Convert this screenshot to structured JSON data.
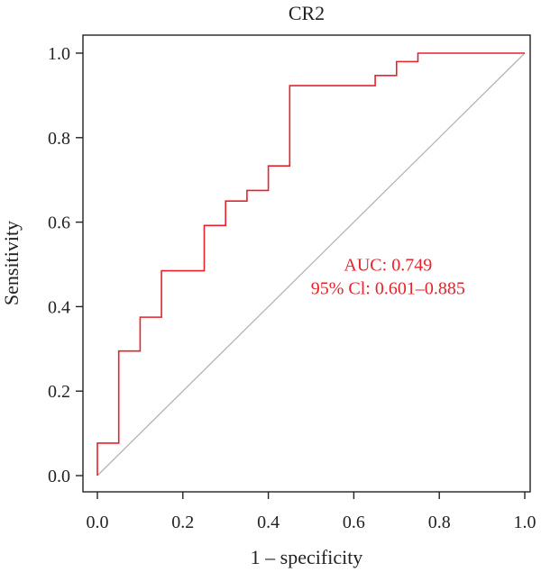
{
  "chart_data": {
    "type": "line",
    "title": "CR2",
    "xlabel": "1 – specificity",
    "ylabel": "Sensitivity",
    "xlim": [
      0,
      1
    ],
    "ylim": [
      0,
      1
    ],
    "x_ticks": [
      "0.0",
      "0.2",
      "0.4",
      "0.6",
      "0.8",
      "1.0"
    ],
    "y_ticks": [
      "0.0",
      "0.2",
      "0.4",
      "0.6",
      "0.8",
      "1.0"
    ],
    "grid": false,
    "legend": "none",
    "series": [
      {
        "color": "#e8212b",
        "points": [
          [
            0.0,
            0.0
          ],
          [
            0.0,
            0.077
          ],
          [
            0.05,
            0.077
          ],
          [
            0.05,
            0.295
          ],
          [
            0.1,
            0.295
          ],
          [
            0.1,
            0.375
          ],
          [
            0.15,
            0.375
          ],
          [
            0.15,
            0.485
          ],
          [
            0.25,
            0.485
          ],
          [
            0.25,
            0.592
          ],
          [
            0.3,
            0.592
          ],
          [
            0.3,
            0.65
          ],
          [
            0.35,
            0.65
          ],
          [
            0.35,
            0.675
          ],
          [
            0.4,
            0.675
          ],
          [
            0.4,
            0.733
          ],
          [
            0.45,
            0.733
          ],
          [
            0.45,
            0.923
          ],
          [
            0.65,
            0.923
          ],
          [
            0.65,
            0.947
          ],
          [
            0.7,
            0.947
          ],
          [
            0.7,
            0.98
          ],
          [
            0.75,
            0.98
          ],
          [
            0.75,
            1.0
          ],
          [
            1.0,
            1.0
          ]
        ]
      }
    ],
    "reference_line": {
      "color": "#b4b4b4",
      "points": [
        [
          0,
          0
        ],
        [
          1,
          1
        ]
      ]
    },
    "annotations": [
      {
        "text": "AUC: 0.749",
        "x": 0.68,
        "y": 0.485,
        "color": "#e8212b"
      },
      {
        "text": "95% Cl: 0.601–0.885",
        "x": 0.68,
        "y": 0.43,
        "color": "#e8212b"
      }
    ]
  }
}
